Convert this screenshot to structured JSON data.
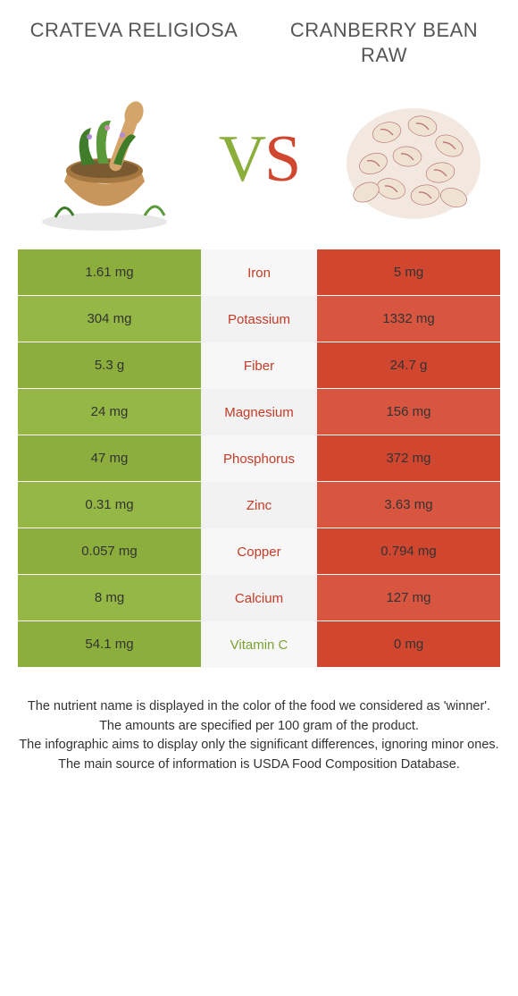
{
  "colors": {
    "left": "#8bae3d",
    "right": "#d1462f",
    "left_alt": "#94b746",
    "right_alt": "#d85640",
    "mid_text_left": "#7ca233",
    "mid_text_right": "#c33c27"
  },
  "header": {
    "left_title": "Crateva religiosa",
    "right_title": "Cranberry bean raw",
    "vs_v": "V",
    "vs_s": "S"
  },
  "rows": [
    {
      "nutrient": "Iron",
      "left": "1.61 mg",
      "right": "5 mg",
      "winner": "right"
    },
    {
      "nutrient": "Potassium",
      "left": "304 mg",
      "right": "1332 mg",
      "winner": "right"
    },
    {
      "nutrient": "Fiber",
      "left": "5.3 g",
      "right": "24.7 g",
      "winner": "right"
    },
    {
      "nutrient": "Magnesium",
      "left": "24 mg",
      "right": "156 mg",
      "winner": "right"
    },
    {
      "nutrient": "Phosphorus",
      "left": "47 mg",
      "right": "372 mg",
      "winner": "right"
    },
    {
      "nutrient": "Zinc",
      "left": "0.31 mg",
      "right": "3.63 mg",
      "winner": "right"
    },
    {
      "nutrient": "Copper",
      "left": "0.057 mg",
      "right": "0.794 mg",
      "winner": "right"
    },
    {
      "nutrient": "Calcium",
      "left": "8 mg",
      "right": "127 mg",
      "winner": "right"
    },
    {
      "nutrient": "Vitamin C",
      "left": "54.1 mg",
      "right": "0 mg",
      "winner": "left"
    }
  ],
  "footnotes": [
    "The nutrient name is displayed in the color of the food we considered as 'winner'.",
    "The amounts are specified per 100 gram of the product.",
    "The infographic aims to display only the significant differences, ignoring minor ones.",
    "The main source of information is USDA Food Composition Database."
  ]
}
